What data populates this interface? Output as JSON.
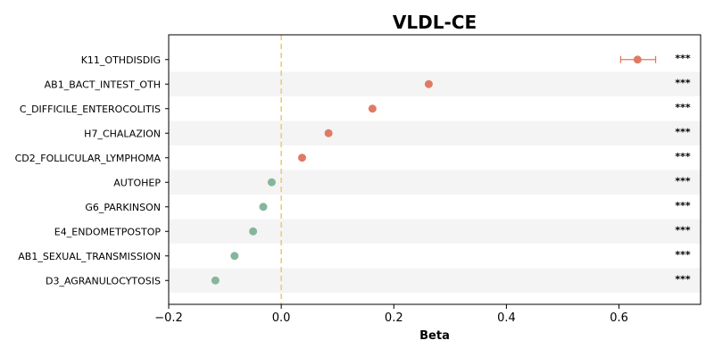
{
  "colors": {
    "positive": "#e07a64",
    "negative": "#86b59b",
    "zero_line": "#f4c77c",
    "band": "#f4f4f4",
    "axis": "#000000"
  },
  "chart_data": {
    "type": "scatter",
    "title": "VLDL-CE",
    "xlabel": "Beta",
    "ylabel": "",
    "xlim": [
      -0.2,
      0.745
    ],
    "xticks": [
      -0.2,
      0.0,
      0.2,
      0.4,
      0.6
    ],
    "xtick_labels": [
      "−0.2",
      "0.0",
      "0.2",
      "0.4",
      "0.6"
    ],
    "reference_line": 0,
    "alternating_row_bands": true,
    "grid": false,
    "points": [
      {
        "label": "K11_OTHDISDIG",
        "beta": 0.633,
        "ci_low": 0.603,
        "ci_high": 0.665,
        "significance": "***"
      },
      {
        "label": "AB1_BACT_INTEST_OTH",
        "beta": 0.262,
        "ci_low": 0.262,
        "ci_high": 0.262,
        "significance": "***"
      },
      {
        "label": "C_DIFFICILE_ENTEROCOLITIS",
        "beta": 0.162,
        "ci_low": 0.162,
        "ci_high": 0.162,
        "significance": "***"
      },
      {
        "label": "H7_CHALAZION",
        "beta": 0.084,
        "ci_low": 0.084,
        "ci_high": 0.084,
        "significance": "***"
      },
      {
        "label": "CD2_FOLLICULAR_LYMPHOMA",
        "beta": 0.037,
        "ci_low": 0.037,
        "ci_high": 0.037,
        "significance": "***"
      },
      {
        "label": "AUTOHEP",
        "beta": -0.017,
        "ci_low": -0.017,
        "ci_high": -0.017,
        "significance": "***"
      },
      {
        "label": "G6_PARKINSON",
        "beta": -0.032,
        "ci_low": -0.032,
        "ci_high": -0.032,
        "significance": "***"
      },
      {
        "label": "E4_ENDOMETPOSTOP",
        "beta": -0.05,
        "ci_low": -0.05,
        "ci_high": -0.05,
        "significance": "***"
      },
      {
        "label": "AB1_SEXUAL_TRANSMISSION",
        "beta": -0.083,
        "ci_low": -0.083,
        "ci_high": -0.083,
        "significance": "***"
      },
      {
        "label": "D3_AGRANULOCYTOSIS",
        "beta": -0.117,
        "ci_low": -0.117,
        "ci_high": -0.117,
        "significance": "***"
      }
    ]
  }
}
